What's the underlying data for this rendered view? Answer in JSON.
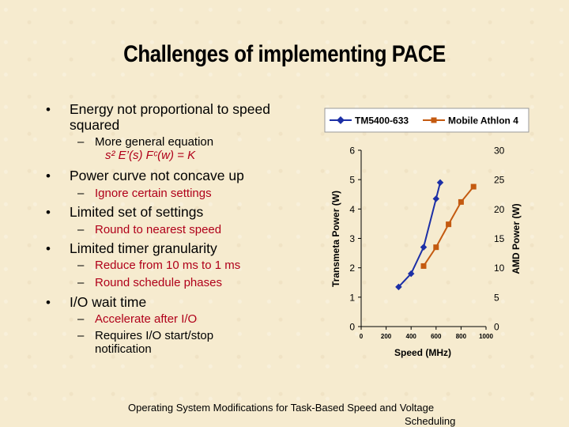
{
  "slide": {
    "title": "Challenges of implementing PACE",
    "bullets": [
      {
        "text": "Energy not proportional to speed",
        "text2": "squared"
      },
      {
        "sub": [
          "More general equation"
        ],
        "equation": "s² E’(s) Fᶜ(w) = K"
      },
      {
        "text": "Power curve not concave up",
        "sub": [
          "Ignore certain settings"
        ]
      },
      {
        "text": "Limited set of settings",
        "sub": [
          "Round to nearest speed"
        ]
      },
      {
        "text": "Limited timer granularity",
        "sub": [
          "Reduce from 10 ms to 1 ms",
          "Round schedule phases"
        ]
      },
      {
        "text": "I/O wait time",
        "sub": [
          "Accelerate after I/O",
          "Requires I/O start/stop",
          "notification"
        ]
      }
    ],
    "footer": {
      "line1": "Operating System Modifications for Task-Based Speed and Voltage",
      "line2": "Scheduling"
    }
  },
  "chart_data": {
    "type": "line",
    "xlabel": "Speed (MHz)",
    "ylabel": "Transmeta Power (W)",
    "y2label": "AMD Power (W)",
    "xlim": [
      0,
      1000
    ],
    "ylim": [
      0,
      6
    ],
    "y2lim": [
      0,
      30
    ],
    "xticks": [
      "0",
      "200",
      "400",
      "600",
      "800",
      "1000"
    ],
    "yticks": [
      "0",
      "1",
      "2",
      "3",
      "4",
      "5",
      "6"
    ],
    "y2ticks": [
      "0",
      "5",
      "10",
      "15",
      "20",
      "25",
      "30"
    ],
    "legend_position": "top",
    "series": [
      {
        "name": "TM5400-633",
        "axis": "left",
        "color": "#1c2fa6",
        "marker": "diamond",
        "x": [
          300,
          400,
          500,
          600,
          633
        ],
        "y": [
          1.35,
          1.8,
          2.7,
          4.35,
          4.9
        ]
      },
      {
        "name": "Mobile Athlon 4",
        "axis": "right",
        "color": "#c45a10",
        "marker": "square",
        "x": [
          500,
          600,
          700,
          800,
          900
        ],
        "y": [
          10.3,
          13.5,
          17.4,
          21.2,
          23.8
        ]
      }
    ]
  }
}
